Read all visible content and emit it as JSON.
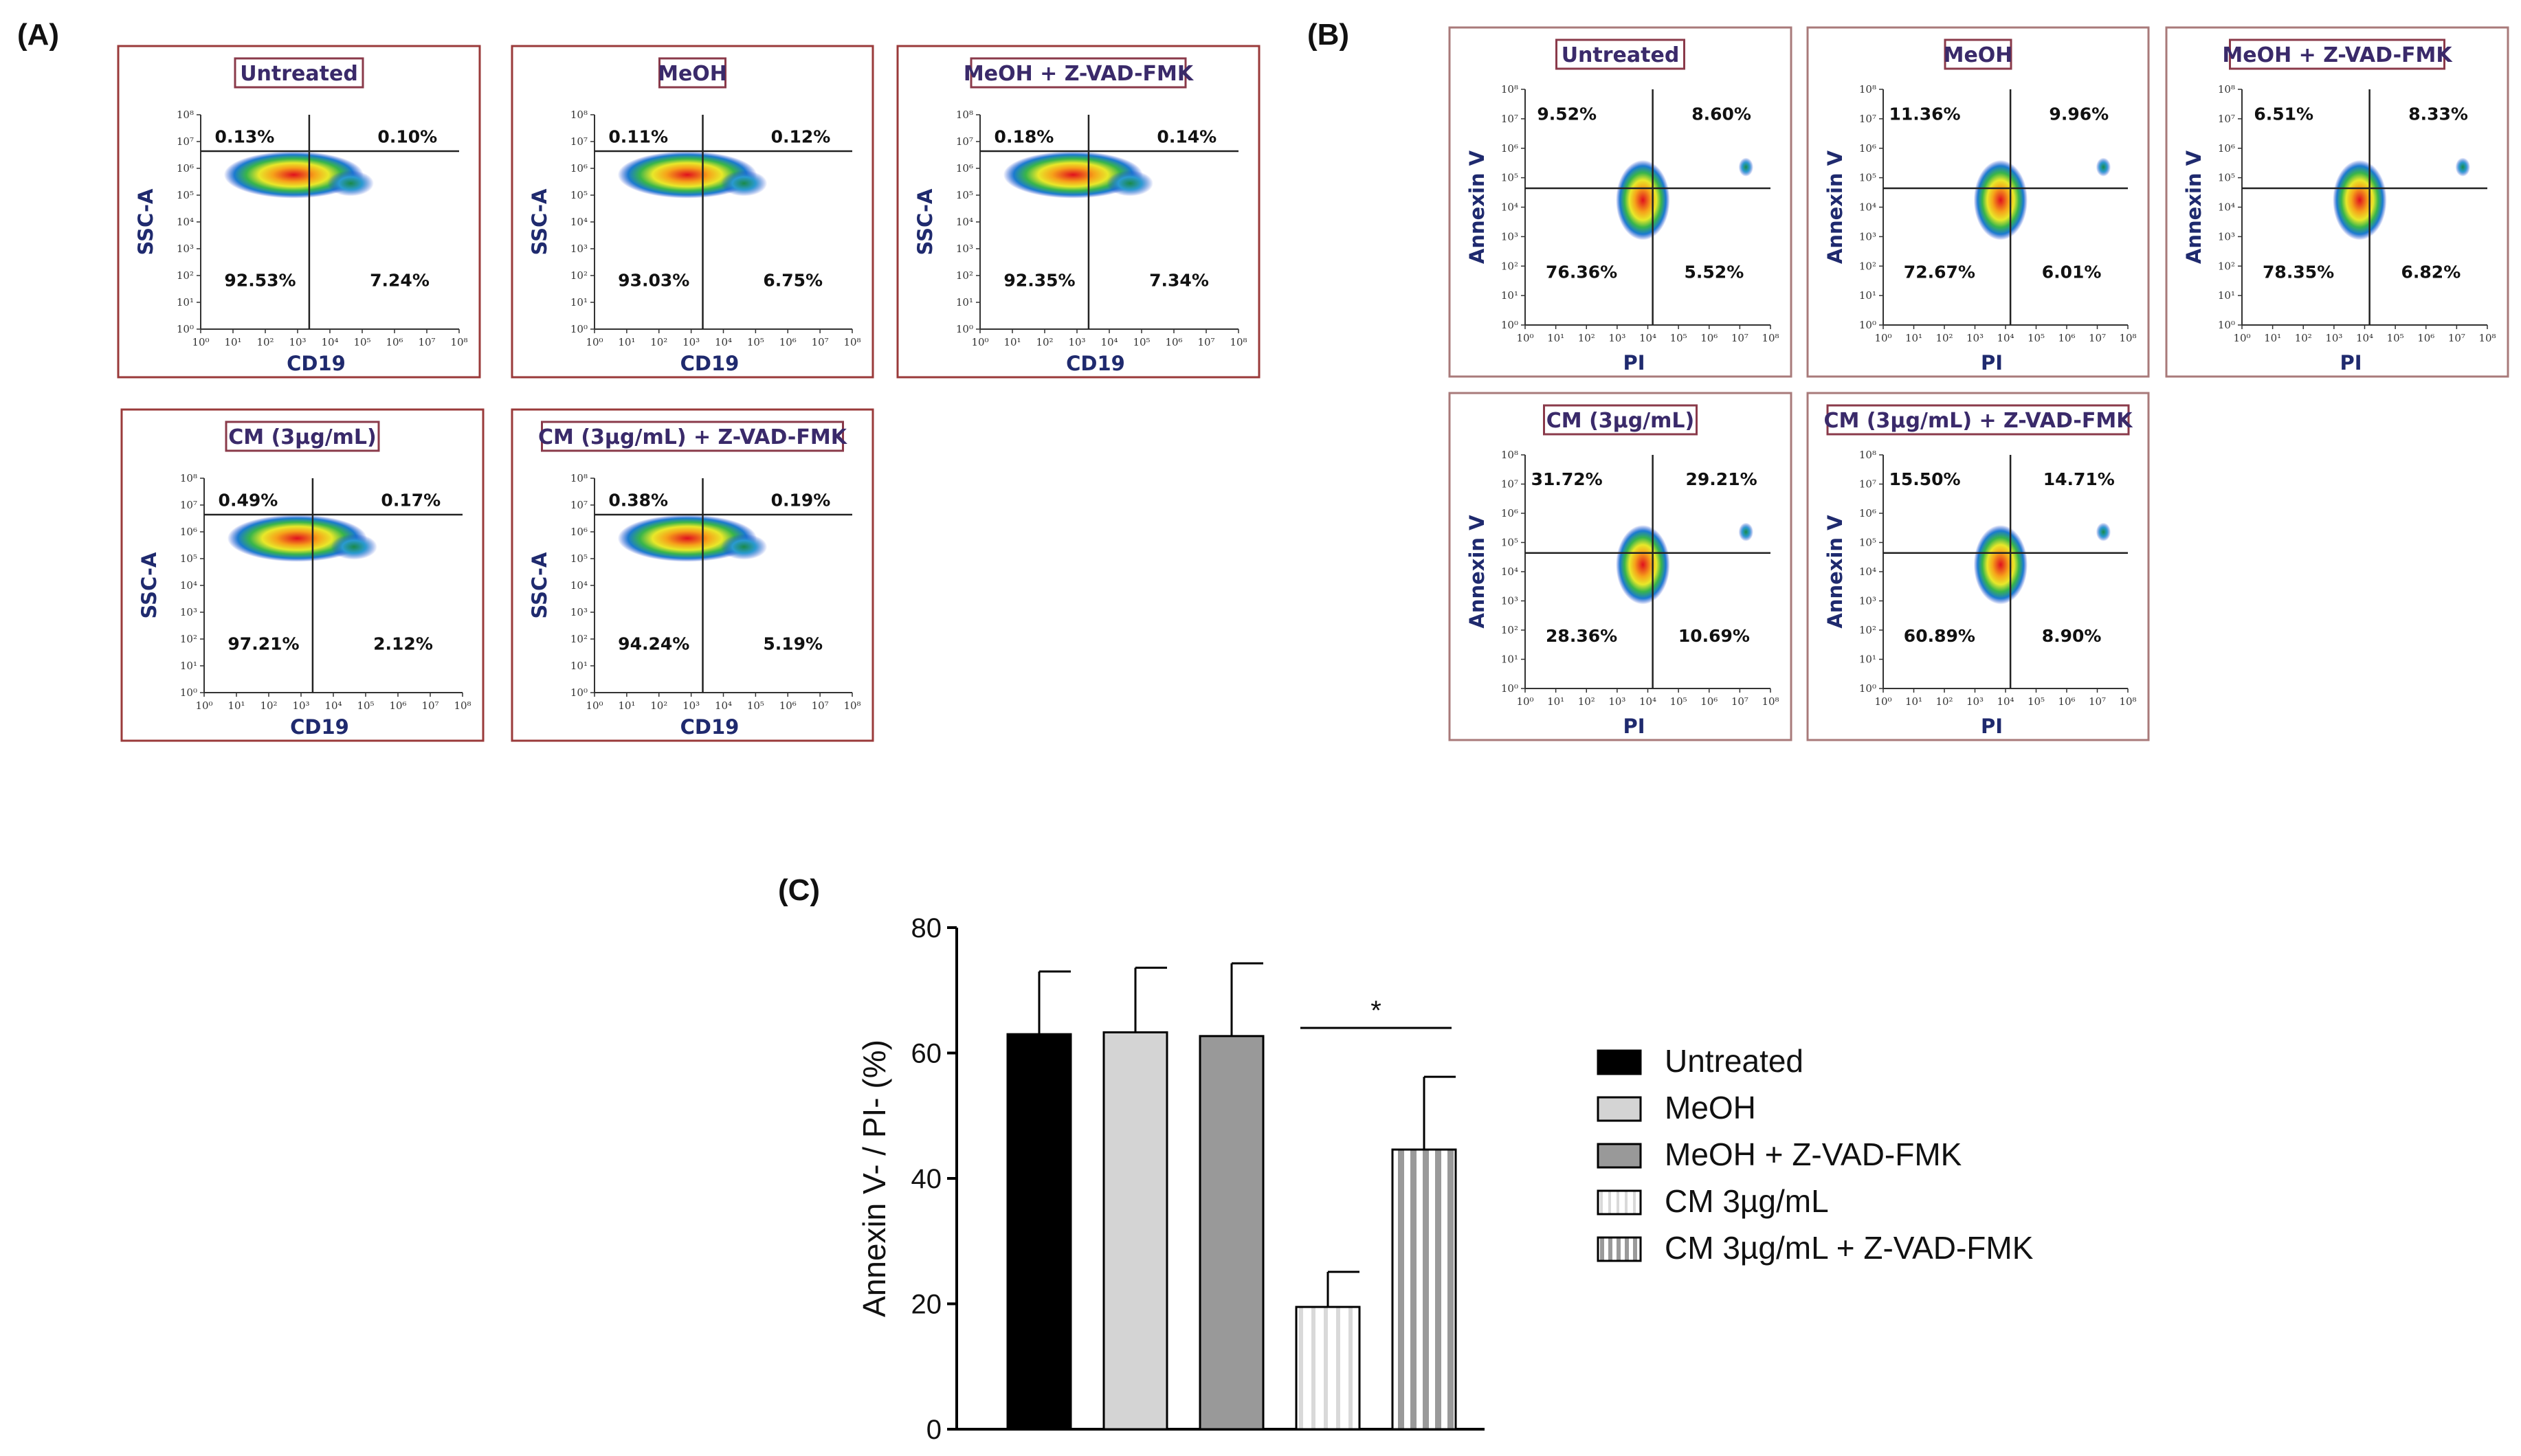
{
  "panels": {
    "A_label": "(A)",
    "B_label": "(B)",
    "C_label": "(C)"
  },
  "flow_A": {
    "x_axis": "CD19",
    "y_axis": "SSC-A",
    "plots": [
      {
        "title": "Untreated",
        "UL": "0.13%",
        "UR": "0.10%",
        "LL": "92.53%",
        "LR": "7.24%"
      },
      {
        "title": "MeOH",
        "UL": "0.11%",
        "UR": "0.12%",
        "LL": "93.03%",
        "LR": "6.75%"
      },
      {
        "title": "MeOH + Z-VAD-FMK",
        "UL": "0.18%",
        "UR": "0.14%",
        "LL": "92.35%",
        "LR": "7.34%"
      },
      {
        "title": "CM (3µg/mL)",
        "UL": "0.49%",
        "UR": "0.17%",
        "LL": "97.21%",
        "LR": "2.12%"
      },
      {
        "title": "CM (3µg/mL) + Z-VAD-FMK",
        "UL": "0.38%",
        "UR": "0.19%",
        "LL": "94.24%",
        "LR": "5.19%"
      }
    ]
  },
  "flow_B": {
    "x_axis": "PI",
    "y_axis": "Annexin V",
    "plots": [
      {
        "title": "Untreated",
        "UL": "9.52%",
        "UR": "8.60%",
        "LL": "76.36%",
        "LR": "5.52%"
      },
      {
        "title": "MeOH",
        "UL": "11.36%",
        "UR": "9.96%",
        "LL": "72.67%",
        "LR": "6.01%"
      },
      {
        "title": "MeOH + Z-VAD-FMK",
        "UL": "6.51%",
        "UR": "8.33%",
        "LL": "78.35%",
        "LR": "6.82%"
      },
      {
        "title": "CM (3µg/mL)",
        "UL": "31.72%",
        "UR": "29.21%",
        "LL": "28.36%",
        "LR": "10.69%"
      },
      {
        "title": "CM (3µg/mL) + Z-VAD-FMK",
        "UL": "15.50%",
        "UR": "14.71%",
        "LL": "60.89%",
        "LR": "8.90%"
      }
    ]
  },
  "log_ticks": [
    "10⁰",
    "10¹",
    "10²",
    "10³",
    "10⁴",
    "10⁵",
    "10⁶",
    "10⁷",
    "10⁸"
  ],
  "chart_data": {
    "type": "bar",
    "ylabel": "Annexin V- / PI-  (%)",
    "ylim": [
      0,
      80
    ],
    "yticks": [
      0,
      20,
      40,
      60,
      80
    ],
    "grid": false,
    "legend_position": "right",
    "significance": {
      "between": [
        3,
        4
      ],
      "label": "*"
    },
    "categories": [
      "Untreated",
      "MeOH",
      "MeOH + Z-VAD-FMK",
      "CM 3µg/mL",
      "CM 3µg/mL + Z-VAD-FMK"
    ],
    "values": [
      63,
      63.3,
      62.7,
      19.5,
      44.6
    ],
    "errors": [
      10,
      10.3,
      11.6,
      5.6,
      11.6
    ],
    "colors": [
      "#000000",
      "#d4d4d4",
      "#999999",
      "striped-light",
      "striped-gray"
    ]
  }
}
